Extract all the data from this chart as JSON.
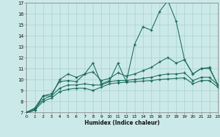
{
  "xlabel": "Humidex (Indice chaleur)",
  "background_color": "#cce9e9",
  "grid_color": "#aad4d0",
  "line_color": "#1a6b5a",
  "xlim": [
    0,
    23
  ],
  "ylim": [
    7,
    17
  ],
  "xticks": [
    0,
    1,
    2,
    3,
    4,
    5,
    6,
    7,
    8,
    9,
    10,
    11,
    12,
    13,
    14,
    15,
    16,
    17,
    18,
    19,
    20,
    21,
    22,
    23
  ],
  "yticks": [
    7,
    8,
    9,
    10,
    11,
    12,
    13,
    14,
    15,
    16,
    17
  ],
  "x": [
    0,
    1,
    2,
    3,
    4,
    5,
    6,
    7,
    8,
    9,
    10,
    11,
    12,
    13,
    14,
    15,
    16,
    17,
    18,
    19,
    20,
    21,
    22,
    23
  ],
  "line1": [
    6.9,
    7.2,
    8.5,
    8.5,
    10.0,
    10.5,
    10.2,
    10.5,
    11.5,
    9.6,
    9.9,
    11.5,
    9.8,
    13.2,
    14.8,
    14.5,
    16.2,
    17.2,
    15.3,
    11.8,
    10.5,
    11.0,
    11.0,
    9.5
  ],
  "line2": [
    7.0,
    7.4,
    8.5,
    8.7,
    9.8,
    9.9,
    9.8,
    10.5,
    10.7,
    9.9,
    10.1,
    10.6,
    10.3,
    10.5,
    10.8,
    11.1,
    11.6,
    12.0,
    11.5,
    11.8,
    10.5,
    11.0,
    11.1,
    9.5
  ],
  "line3": [
    7.0,
    7.3,
    8.2,
    8.5,
    9.2,
    9.5,
    9.5,
    9.6,
    9.5,
    9.5,
    9.8,
    9.9,
    9.9,
    10.0,
    10.1,
    10.2,
    10.4,
    10.5,
    10.5,
    10.6,
    9.9,
    10.2,
    10.2,
    9.5
  ],
  "line4": [
    7.0,
    7.2,
    8.0,
    8.3,
    8.9,
    9.1,
    9.2,
    9.2,
    9.0,
    9.3,
    9.6,
    9.7,
    9.75,
    9.8,
    9.85,
    9.9,
    10.0,
    10.05,
    10.1,
    10.15,
    9.6,
    9.9,
    9.9,
    9.3
  ]
}
